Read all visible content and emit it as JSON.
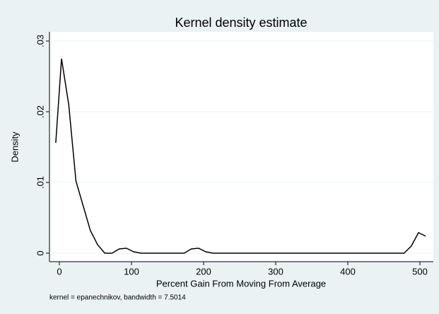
{
  "chart_data": {
    "type": "line",
    "title": "Kernel density estimate",
    "x_label": "Percent Gain From Moving From Average",
    "y_label": "Density",
    "note": "kernel = epanechnikov, bandwidth = 7.5014",
    "x": [
      -5,
      3,
      13,
      23,
      33,
      43,
      53,
      63,
      73,
      83,
      93,
      103,
      113,
      173,
      183,
      193,
      203,
      213,
      478,
      488,
      498,
      508
    ],
    "series": [
      {
        "name": "Density",
        "color": "#000000",
        "values": [
          0.0156,
          0.0275,
          0.021,
          0.0102,
          0.0067,
          0.0032,
          0.0012,
          0.0,
          0.0,
          0.0006,
          0.0007,
          0.0002,
          0.0,
          0.0,
          0.0006,
          0.0007,
          0.0002,
          0.0,
          0.0,
          0.001,
          0.0029,
          0.0024
        ]
      }
    ],
    "xlim": [
      -13.7,
      518.6
    ],
    "ylim": [
      -0.0012,
      0.0313
    ],
    "xticks": [
      0,
      100,
      200,
      300,
      400,
      500
    ],
    "yticks": [
      0,
      {
        "value": 0.01,
        "label": ".01"
      },
      {
        "value": 0.02,
        "label": ".02"
      },
      {
        "value": 0.03,
        "label": ".03"
      }
    ],
    "grid": true
  }
}
